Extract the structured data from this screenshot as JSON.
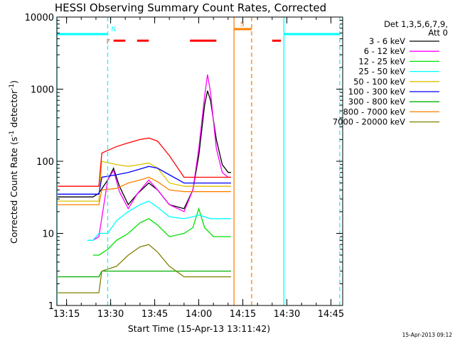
{
  "chart_data": {
    "type": "line",
    "title": "HESSI Observing Summary Count Rates, Corrected",
    "xlabel": "Start Time (15-Apr-13 13:11:42)",
    "ylabel": "Corrected Count Rate (s⁻¹ detector⁻¹)",
    "ylabel_main": "Corrected Count Rate (s",
    "ylabel_sup1": "-1",
    "ylabel_mid": " detector",
    "ylabel_sup2": "-1",
    "ylabel_end": ")",
    "footer": "15-Apr-2013 09:12",
    "yscale": "log",
    "xlim": [
      "13:11:42",
      "14:49:00"
    ],
    "ylim": [
      1,
      10000
    ],
    "xticks": [
      "13:15",
      "13:30",
      "13:45",
      "14:00",
      "14:15",
      "14:30",
      "14:45"
    ],
    "yticks": [
      "1",
      "10",
      "100",
      "1000",
      "10000"
    ],
    "legend_header": [
      "Det 1,3,5,6,7,9,",
      "Att 0"
    ],
    "legend_position": "right",
    "series": [
      {
        "name": "3 - 6 keV",
        "color": "#000000",
        "points": [
          [
            "13:12",
            32
          ],
          [
            "13:24",
            32
          ],
          [
            "13:26",
            36
          ],
          [
            "13:29",
            55
          ],
          [
            "13:31",
            80
          ],
          [
            "13:33",
            45
          ],
          [
            "13:36",
            25
          ],
          [
            "13:39",
            35
          ],
          [
            "13:43",
            50
          ],
          [
            "13:46",
            40
          ],
          [
            "13:50",
            25
          ],
          [
            "13:55",
            22
          ],
          [
            "13:58",
            40
          ],
          [
            "14:00",
            120
          ],
          [
            "14:02",
            600
          ],
          [
            "14:03",
            950
          ],
          [
            "14:04",
            700
          ],
          [
            "14:06",
            200
          ],
          [
            "14:08",
            90
          ],
          [
            "14:10",
            70
          ],
          [
            "14:11",
            70
          ]
        ]
      },
      {
        "name": "6 - 12 keV",
        "color": "#ff00ff",
        "points": [
          [
            "13:24",
            8
          ],
          [
            "13:26",
            9
          ],
          [
            "13:29",
            55
          ],
          [
            "13:31",
            75
          ],
          [
            "13:33",
            38
          ],
          [
            "13:36",
            22
          ],
          [
            "13:39",
            35
          ],
          [
            "13:43",
            55
          ],
          [
            "13:46",
            40
          ],
          [
            "13:50",
            25
          ],
          [
            "13:55",
            20
          ],
          [
            "13:58",
            40
          ],
          [
            "14:00",
            150
          ],
          [
            "14:02",
            800
          ],
          [
            "14:03",
            1600
          ],
          [
            "14:04",
            900
          ],
          [
            "14:06",
            150
          ],
          [
            "14:08",
            70
          ],
          [
            "14:10",
            60
          ],
          [
            "14:11",
            60
          ]
        ]
      },
      {
        "name": "12 - 25 keV",
        "color": "#00e000",
        "points": [
          [
            "13:24",
            5
          ],
          [
            "13:26",
            5
          ],
          [
            "13:29",
            6
          ],
          [
            "13:32",
            8
          ],
          [
            "13:36",
            10
          ],
          [
            "13:40",
            14
          ],
          [
            "13:43",
            16
          ],
          [
            "13:46",
            13
          ],
          [
            "13:50",
            9
          ],
          [
            "13:55",
            10
          ],
          [
            "13:58",
            12
          ],
          [
            "14:00",
            22
          ],
          [
            "14:02",
            12
          ],
          [
            "14:05",
            9
          ],
          [
            "14:08",
            9
          ],
          [
            "14:11",
            9
          ]
        ]
      },
      {
        "name": "25 - 50 keV",
        "color": "#00ffff",
        "points": [
          [
            "13:22",
            8
          ],
          [
            "13:24",
            8
          ],
          [
            "13:26",
            10
          ],
          [
            "13:29",
            10
          ],
          [
            "13:32",
            15
          ],
          [
            "13:36",
            20
          ],
          [
            "13:40",
            25
          ],
          [
            "13:43",
            28
          ],
          [
            "13:46",
            23
          ],
          [
            "13:50",
            17
          ],
          [
            "13:55",
            16
          ],
          [
            "13:58",
            17
          ],
          [
            "14:00",
            18
          ],
          [
            "14:04",
            16
          ],
          [
            "14:08",
            16
          ],
          [
            "14:11",
            16
          ]
        ]
      },
      {
        "name": "50 - 100 keV",
        "color": "#e0c000",
        "points": [
          [
            "13:12",
            28
          ],
          [
            "13:26",
            28
          ],
          [
            "13:27",
            100
          ],
          [
            "13:32",
            90
          ],
          [
            "13:36",
            85
          ],
          [
            "13:40",
            90
          ],
          [
            "13:43",
            95
          ],
          [
            "13:46",
            80
          ],
          [
            "13:50",
            50
          ],
          [
            "13:55",
            45
          ],
          [
            "13:58",
            45
          ],
          [
            "14:03",
            45
          ],
          [
            "14:08",
            45
          ],
          [
            "14:11",
            45
          ]
        ]
      },
      {
        "name": "100 - 300 keV",
        "color": "#0000ff",
        "points": [
          [
            "13:12",
            35
          ],
          [
            "13:26",
            35
          ],
          [
            "13:27",
            60
          ],
          [
            "13:32",
            65
          ],
          [
            "13:36",
            70
          ],
          [
            "13:40",
            78
          ],
          [
            "13:43",
            85
          ],
          [
            "13:46",
            80
          ],
          [
            "13:50",
            65
          ],
          [
            "13:55",
            50
          ],
          [
            "13:58",
            50
          ],
          [
            "14:03",
            50
          ],
          [
            "14:08",
            50
          ],
          [
            "14:11",
            50
          ]
        ]
      },
      {
        "name": "300 - 800 keV",
        "color": "#00b000",
        "points": [
          [
            "13:12",
            2.5
          ],
          [
            "13:26",
            2.5
          ],
          [
            "13:27",
            3
          ],
          [
            "13:32",
            3
          ],
          [
            "13:38",
            3
          ],
          [
            "13:45",
            3
          ],
          [
            "13:52",
            3
          ],
          [
            "13:58",
            3
          ],
          [
            "14:05",
            3
          ],
          [
            "14:11",
            3
          ]
        ]
      },
      {
        "name": "800 - 7000 keV",
        "color": "#ff8000",
        "points": [
          [
            "13:12",
            25
          ],
          [
            "13:26",
            25
          ],
          [
            "13:27",
            40
          ],
          [
            "13:32",
            42
          ],
          [
            "13:36",
            50
          ],
          [
            "13:40",
            55
          ],
          [
            "13:43",
            60
          ],
          [
            "13:46",
            52
          ],
          [
            "13:50",
            40
          ],
          [
            "13:55",
            38
          ],
          [
            "13:58",
            38
          ],
          [
            "14:03",
            38
          ],
          [
            "14:08",
            38
          ],
          [
            "14:11",
            38
          ]
        ]
      },
      {
        "name": "7000 - 20000 keV",
        "color": "#808000",
        "points": [
          [
            "13:12",
            1.5
          ],
          [
            "13:26",
            1.5
          ],
          [
            "13:27",
            3
          ],
          [
            "13:32",
            3.5
          ],
          [
            "13:36",
            5
          ],
          [
            "13:40",
            6.5
          ],
          [
            "13:43",
            7
          ],
          [
            "13:46",
            5.5
          ],
          [
            "13:50",
            3.5
          ],
          [
            "13:55",
            2.5
          ],
          [
            "13:58",
            2.5
          ],
          [
            "14:03",
            2.5
          ],
          [
            "14:08",
            2.5
          ],
          [
            "14:11",
            2.5
          ]
        ]
      },
      {
        "name": "",
        "color": "#ff0000",
        "points": [
          [
            "13:12",
            45
          ],
          [
            "13:26",
            45
          ],
          [
            "13:27",
            130
          ],
          [
            "13:32",
            160
          ],
          [
            "13:36",
            180
          ],
          [
            "13:40",
            200
          ],
          [
            "13:43",
            210
          ],
          [
            "13:46",
            190
          ],
          [
            "13:50",
            120
          ],
          [
            "13:55",
            60
          ],
          [
            "13:58",
            60
          ],
          [
            "14:03",
            60
          ],
          [
            "14:08",
            60
          ],
          [
            "14:11",
            60
          ]
        ]
      }
    ],
    "flags": [
      {
        "label": "N",
        "color": "#00ffff",
        "level": 5800,
        "segments": [
          [
            "13:11:42",
            "13:29"
          ],
          [
            "14:29",
            "14:48"
          ]
        ]
      },
      {
        "label": "F",
        "color": "#ff0000",
        "level": 4700,
        "segments": [
          [
            "13:31",
            "13:35"
          ],
          [
            "13:39",
            "13:43"
          ],
          [
            "13:57",
            "14:06"
          ],
          [
            "14:25",
            "14:28"
          ]
        ]
      },
      {
        "label": "S",
        "color": "#ff8000",
        "level": 6800,
        "segments": [
          [
            "14:12",
            "14:18"
          ]
        ]
      }
    ],
    "vlines": [
      {
        "time": "13:11:42",
        "color": "#00ffff",
        "style": "solid"
      },
      {
        "time": "13:29",
        "color": "#00ffff",
        "style": "dashed"
      },
      {
        "time": "14:12",
        "color": "#ff8000",
        "style": "solid"
      },
      {
        "time": "14:18",
        "color": "#ff8000",
        "style": "dashed"
      },
      {
        "time": "14:29",
        "color": "#00ffff",
        "style": "solid"
      },
      {
        "time": "14:48",
        "color": "#00ffff",
        "style": "dashed"
      }
    ]
  }
}
